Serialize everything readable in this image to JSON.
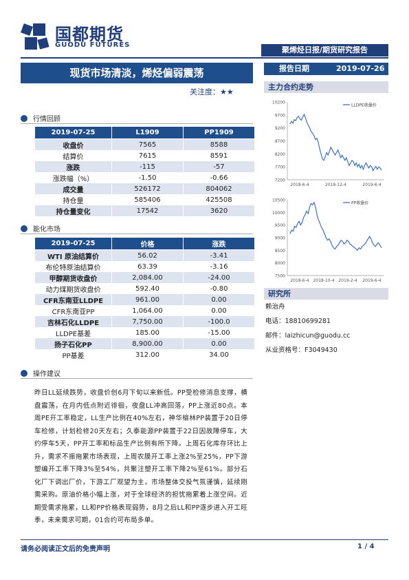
{
  "header": {
    "logo_cn": "国都期货",
    "logo_en": "GUODU FUTURES",
    "report_type": "聚烯烃日报/期货研究报告"
  },
  "title": "现货市场清淡，烯烃偏弱震荡",
  "attention_label": "关注度：",
  "attention_stars": "★★",
  "report_date": {
    "label": "报告日期",
    "value": "2019-07-26"
  },
  "review": {
    "heading": "行情回顾",
    "columns": [
      "2019-07-25",
      "L1909",
      "PP1909"
    ],
    "rows": [
      [
        "收盘价",
        "7565",
        "8588"
      ],
      [
        "结算价",
        "7615",
        "8591"
      ],
      [
        "涨跌",
        "-115",
        "-57"
      ],
      [
        "涨跌幅（%）",
        "-1.50",
        "-0.66"
      ],
      [
        "成交量",
        "526172",
        "804062"
      ],
      [
        "持仓量",
        "585406",
        "425508"
      ],
      [
        "持仓量变化",
        "17542",
        "3620"
      ]
    ]
  },
  "chem": {
    "heading": "能化市场",
    "columns": [
      "2019-07-25",
      "价格",
      "涨跌"
    ],
    "rows": [
      [
        "WTI 原油结算价",
        "56.02",
        "-3.41"
      ],
      [
        "布伦特原油结算价",
        "63.39",
        "-3.16"
      ],
      [
        "甲醇期货收盘价",
        "2,084.00",
        "-24.00"
      ],
      [
        "动力煤期货收盘价",
        "592.40",
        "-0.80"
      ],
      [
        "CFR东南亚LLDPE",
        "961.00",
        "0.00"
      ],
      [
        "CFR东南亚PP",
        "1,064.00",
        "0.00"
      ],
      [
        "吉林石化LLDPE",
        "7,750.00",
        "-100.0"
      ],
      [
        "LLDPE基差",
        "185.00",
        "-15.00"
      ],
      [
        "扬子石化PP",
        "8,900.00",
        "0.00"
      ],
      [
        "PP基差",
        "312.00",
        "34.00"
      ]
    ]
  },
  "advice": {
    "heading": "操作建议",
    "text": "昨日LL延续跌势，收盘价创6月下旬以来新低。PP受检修消息支撑，横盘震荡，在月内低点附近徘徊，夜盘LL冲高回落，PP上涨近80点。本周PE开工率稳定，LL生产比例在40%左右，神华榆林PP装置于20日停车检修，计划检修20天左右；久泰能源PP装置于22日因故障停车，大约停车5天，PP开工率和标品生产比例有所下降。上周石化库存环比上升，需求不振拖累市场表现，上周农膜开工率上涨2%至25%，PP下游塑编开工率下降3%至54%，共聚注塑开工率下降2%至61%。部分石化厂下调出厂价，下游工厂观望为主，市场整体交投气氛谨慎，延续刚需采购。原油价格小幅上涨，对于全球经济的担忧拖累着上涨空间。近期受需求拖累，LL和PP价格表现弱势，8月之后LL和PP逐步进入开工旺季，未来需求可期，01合约可布局多单。"
  },
  "sidebar": {
    "trend_heading": "主力合约走势",
    "research_heading": "研究所",
    "analyst": "赖治舟",
    "phone": "电话：18810699281",
    "email": "邮件：laizhicun@guodu.cc",
    "license": "从业资格号：F3049430"
  },
  "chart_data": [
    {
      "type": "line",
      "series": [
        {
          "name": "LLDPE收盘价",
          "color": "#2b66c0",
          "values": [
            9350,
            9450,
            9380,
            9520,
            9480,
            9600,
            9650,
            9550,
            9500,
            9620,
            9720,
            9580,
            9400,
            9300,
            9200,
            9050,
            9000,
            8900,
            8750,
            8800,
            8650,
            8400,
            8200,
            8000,
            7950,
            8100,
            8250,
            8150,
            8300,
            8450,
            8350,
            8250,
            8150,
            8250,
            8350,
            8200,
            8050,
            8150,
            8050,
            7950,
            8050,
            7900,
            7750,
            7850,
            7950,
            7900,
            7750,
            7850,
            7700,
            7800,
            7650,
            7750,
            7600,
            7750,
            7850,
            7750,
            7650,
            7750,
            7700,
            7550,
            7650,
            7720,
            7600,
            7700,
            7650,
            7565
          ]
        }
      ],
      "x_ticks": [
        "2018-6-4",
        "2018-12-4",
        "2019-6-4"
      ],
      "y_ticks": [
        7200,
        7700,
        8200,
        8700,
        9200,
        9700,
        10200
      ],
      "ylim": [
        7200,
        10200
      ]
    },
    {
      "type": "line",
      "series": [
        {
          "name": "PP收盘价",
          "color": "#2b66c0",
          "values": [
            9150,
            9300,
            9250,
            9450,
            9400,
            9550,
            9650,
            9500,
            9600,
            9800,
            9900,
            10050,
            9950,
            10200,
            10350,
            10300,
            10400,
            10200,
            9900,
            9700,
            9550,
            9400,
            9300,
            9150,
            9000,
            8900,
            8950,
            8850,
            8700,
            8600,
            8550,
            8650,
            8700,
            8800,
            8900,
            8850,
            8750,
            8800,
            8900,
            8850,
            8750,
            8700,
            8650,
            8600,
            8550,
            8500,
            8600,
            8550,
            8650,
            8700,
            8750,
            8850,
            8950,
            9050,
            8950,
            8800,
            8700,
            8650,
            8750,
            8800,
            8700,
            8600
          ]
        }
      ],
      "x_ticks": [
        "2018-6-4",
        "2018-10-4",
        "2019-2-4",
        "2019-6-4"
      ],
      "y_ticks": [
        7500,
        8000,
        8500,
        9000,
        9500,
        10000,
        10500
      ],
      "ylim": [
        7500,
        10500
      ]
    }
  ],
  "footer": {
    "disclaimer": "请务必阅读正文后的免责声明",
    "page": "1 / 4"
  }
}
